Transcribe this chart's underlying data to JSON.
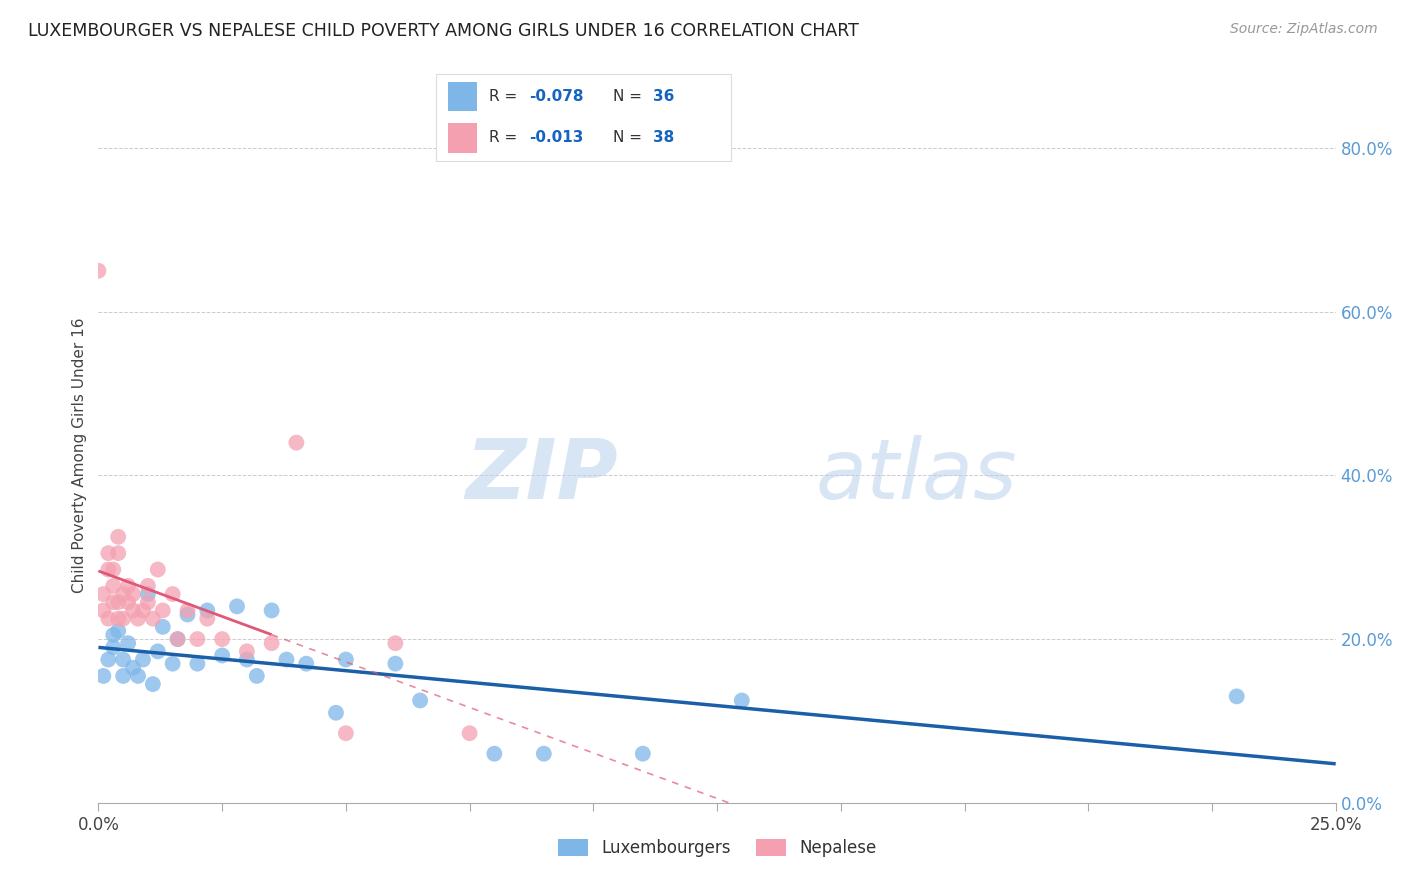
{
  "title": "LUXEMBOURGER VS NEPALESE CHILD POVERTY AMONG GIRLS UNDER 16 CORRELATION CHART",
  "source": "Source: ZipAtlas.com",
  "ylabel": "Child Poverty Among Girls Under 16",
  "watermark_zip": "ZIP",
  "watermark_atlas": "atlas",
  "legend_lux": "Luxembourgers",
  "legend_nep": "Nepalese",
  "R_lux": -0.078,
  "N_lux": 36,
  "R_nep": -0.013,
  "N_nep": 38,
  "color_lux": "#7EB6E8",
  "color_nep": "#F4A0B0",
  "line_color_lux": "#1A5FA8",
  "line_color_nep": "#E05878",
  "background": "#FFFFFF",
  "xlim": [
    0.0,
    0.25
  ],
  "ylim": [
    0.0,
    0.85
  ],
  "right_yticks": [
    0.0,
    0.2,
    0.4,
    0.6,
    0.8
  ],
  "right_yticklabels": [
    "0.0%",
    "20.0%",
    "40.0%",
    "60.0%",
    "80.0%"
  ],
  "lux_x": [
    0.001,
    0.002,
    0.003,
    0.003,
    0.004,
    0.005,
    0.005,
    0.006,
    0.007,
    0.008,
    0.009,
    0.01,
    0.011,
    0.012,
    0.013,
    0.015,
    0.016,
    0.018,
    0.02,
    0.022,
    0.025,
    0.028,
    0.03,
    0.032,
    0.035,
    0.038,
    0.042,
    0.048,
    0.05,
    0.06,
    0.065,
    0.08,
    0.09,
    0.11,
    0.13,
    0.23
  ],
  "lux_y": [
    0.155,
    0.175,
    0.19,
    0.205,
    0.21,
    0.155,
    0.175,
    0.195,
    0.165,
    0.155,
    0.175,
    0.255,
    0.145,
    0.185,
    0.215,
    0.17,
    0.2,
    0.23,
    0.17,
    0.235,
    0.18,
    0.24,
    0.175,
    0.155,
    0.235,
    0.175,
    0.17,
    0.11,
    0.175,
    0.17,
    0.125,
    0.06,
    0.06,
    0.06,
    0.125,
    0.13
  ],
  "nep_x": [
    0.0,
    0.001,
    0.001,
    0.002,
    0.002,
    0.002,
    0.003,
    0.003,
    0.003,
    0.004,
    0.004,
    0.004,
    0.004,
    0.005,
    0.005,
    0.006,
    0.006,
    0.007,
    0.007,
    0.008,
    0.009,
    0.01,
    0.01,
    0.011,
    0.012,
    0.013,
    0.015,
    0.016,
    0.018,
    0.02,
    0.022,
    0.025,
    0.03,
    0.035,
    0.04,
    0.05,
    0.06,
    0.075
  ],
  "nep_y": [
    0.65,
    0.235,
    0.255,
    0.225,
    0.285,
    0.305,
    0.245,
    0.265,
    0.285,
    0.245,
    0.305,
    0.325,
    0.225,
    0.225,
    0.255,
    0.245,
    0.265,
    0.235,
    0.255,
    0.225,
    0.235,
    0.245,
    0.265,
    0.225,
    0.285,
    0.235,
    0.255,
    0.2,
    0.235,
    0.2,
    0.225,
    0.2,
    0.185,
    0.195,
    0.44,
    0.085,
    0.195,
    0.085
  ]
}
